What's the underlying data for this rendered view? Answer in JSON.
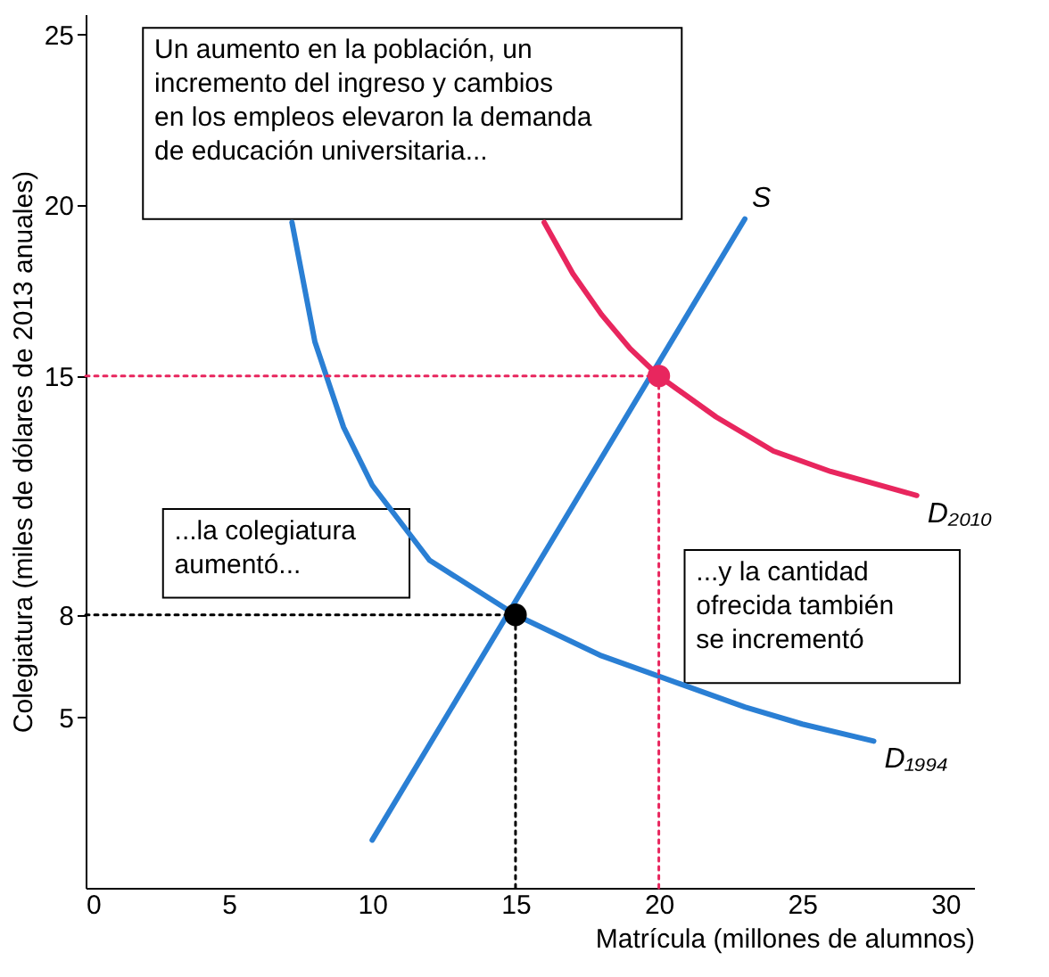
{
  "chart_data": {
    "type": "line",
    "xlabel": "Matrícula (millones de alumnos)",
    "ylabel": "Colegiatura (miles de dólares de 2013 anuales)",
    "xlim": [
      0,
      31
    ],
    "ylim": [
      0,
      25.6
    ],
    "xticks": [
      0,
      5,
      10,
      15,
      20,
      25,
      30
    ],
    "yticks": [
      5,
      8,
      15,
      20,
      25
    ],
    "grid": false,
    "line_style": "solid",
    "series": [
      {
        "name": "S",
        "color": "#2a7fd4",
        "x": [
          10,
          23
        ],
        "values": [
          1.4,
          19.6
        ]
      },
      {
        "name": "D₁₉₉₄",
        "color": "#2a7fd4",
        "x": [
          7.2,
          8,
          9,
          10,
          12,
          15,
          18,
          20,
          23,
          25,
          27.5
        ],
        "values": [
          19.5,
          16,
          13.5,
          11.8,
          9.6,
          8,
          6.8,
          6.2,
          5.3,
          4.8,
          4.3
        ]
      },
      {
        "name": "D₂₀₁₀",
        "color": "#e8265e",
        "x": [
          16,
          17,
          18,
          19,
          20,
          22,
          24,
          26,
          29
        ],
        "values": [
          19.5,
          18,
          16.8,
          15.8,
          15,
          13.8,
          12.8,
          12.2,
          11.5
        ]
      },
      {
        "type": "line",
        "line_style": "dotted",
        "color": "#000000",
        "x": [
          0,
          15
        ],
        "values": [
          8,
          8
        ]
      },
      {
        "type": "line",
        "line_style": "dotted",
        "color": "#000000",
        "x": [
          15,
          15
        ],
        "values": [
          0,
          8
        ]
      },
      {
        "type": "line",
        "line_style": "dotted",
        "color": "#e8265e",
        "x": [
          0,
          20
        ],
        "values": [
          15,
          15
        ]
      },
      {
        "type": "line",
        "line_style": "dotted",
        "color": "#e8265e",
        "x": [
          20,
          20
        ],
        "values": [
          0,
          15
        ]
      },
      {
        "type": "scatter",
        "marker": "circle",
        "color": "#000000",
        "x": [
          15
        ],
        "values": [
          8
        ]
      },
      {
        "type": "scatter",
        "marker": "circle",
        "color": "#e8265e",
        "x": [
          20
        ],
        "values": [
          15
        ]
      }
    ],
    "annotations": [
      "Un aumento en la población, un\nincremento del ingreso y cambios\nen los empleos elevaron la demanda\nde educación universitaria...",
      "...la colegiatura\naumentó...",
      "...y la cantidad\nofrecida también\nse incrementó"
    ]
  }
}
